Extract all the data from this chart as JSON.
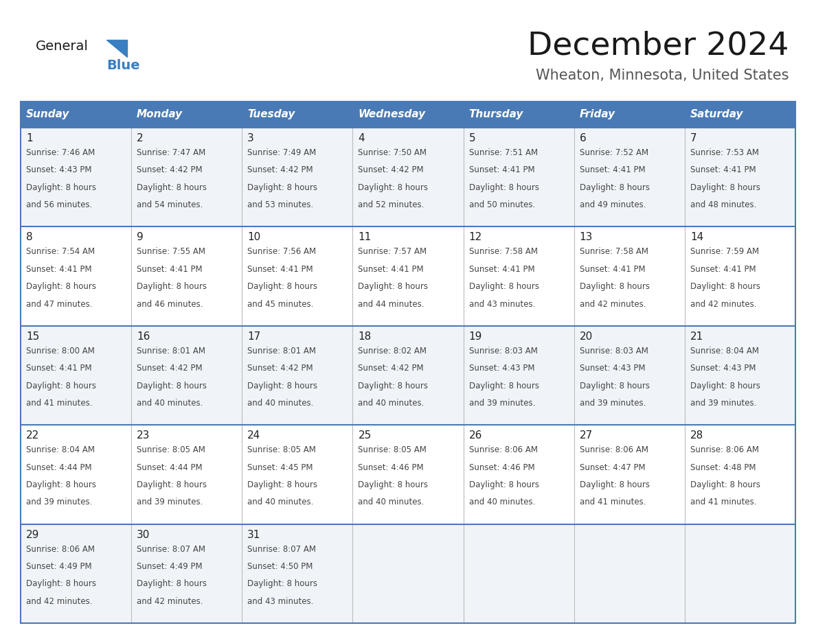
{
  "title": "December 2024",
  "subtitle": "Wheaton, Minnesota, United States",
  "days_of_week": [
    "Sunday",
    "Monday",
    "Tuesday",
    "Wednesday",
    "Thursday",
    "Friday",
    "Saturday"
  ],
  "header_bg": "#4a7ab5",
  "header_text": "#ffffff",
  "row_bg_odd": "#f0f4f8",
  "row_bg_even": "#ffffff",
  "border_color": "#4a7ab5",
  "day_number_color": "#222222",
  "cell_text_color": "#444444",
  "logo_general_color": "#1a1a1a",
  "logo_blue_color": "#3a7fc1",
  "title_color": "#1a1a1a",
  "subtitle_color": "#555555",
  "weeks": [
    {
      "days": [
        {
          "date": 1,
          "sunrise": "7:46 AM",
          "sunset": "4:43 PM",
          "daylight": "8 hours and 56 minutes."
        },
        {
          "date": 2,
          "sunrise": "7:47 AM",
          "sunset": "4:42 PM",
          "daylight": "8 hours and 54 minutes."
        },
        {
          "date": 3,
          "sunrise": "7:49 AM",
          "sunset": "4:42 PM",
          "daylight": "8 hours and 53 minutes."
        },
        {
          "date": 4,
          "sunrise": "7:50 AM",
          "sunset": "4:42 PM",
          "daylight": "8 hours and 52 minutes."
        },
        {
          "date": 5,
          "sunrise": "7:51 AM",
          "sunset": "4:41 PM",
          "daylight": "8 hours and 50 minutes."
        },
        {
          "date": 6,
          "sunrise": "7:52 AM",
          "sunset": "4:41 PM",
          "daylight": "8 hours and 49 minutes."
        },
        {
          "date": 7,
          "sunrise": "7:53 AM",
          "sunset": "4:41 PM",
          "daylight": "8 hours and 48 minutes."
        }
      ]
    },
    {
      "days": [
        {
          "date": 8,
          "sunrise": "7:54 AM",
          "sunset": "4:41 PM",
          "daylight": "8 hours and 47 minutes."
        },
        {
          "date": 9,
          "sunrise": "7:55 AM",
          "sunset": "4:41 PM",
          "daylight": "8 hours and 46 minutes."
        },
        {
          "date": 10,
          "sunrise": "7:56 AM",
          "sunset": "4:41 PM",
          "daylight": "8 hours and 45 minutes."
        },
        {
          "date": 11,
          "sunrise": "7:57 AM",
          "sunset": "4:41 PM",
          "daylight": "8 hours and 44 minutes."
        },
        {
          "date": 12,
          "sunrise": "7:58 AM",
          "sunset": "4:41 PM",
          "daylight": "8 hours and 43 minutes."
        },
        {
          "date": 13,
          "sunrise": "7:58 AM",
          "sunset": "4:41 PM",
          "daylight": "8 hours and 42 minutes."
        },
        {
          "date": 14,
          "sunrise": "7:59 AM",
          "sunset": "4:41 PM",
          "daylight": "8 hours and 42 minutes."
        }
      ]
    },
    {
      "days": [
        {
          "date": 15,
          "sunrise": "8:00 AM",
          "sunset": "4:41 PM",
          "daylight": "8 hours and 41 minutes."
        },
        {
          "date": 16,
          "sunrise": "8:01 AM",
          "sunset": "4:42 PM",
          "daylight": "8 hours and 40 minutes."
        },
        {
          "date": 17,
          "sunrise": "8:01 AM",
          "sunset": "4:42 PM",
          "daylight": "8 hours and 40 minutes."
        },
        {
          "date": 18,
          "sunrise": "8:02 AM",
          "sunset": "4:42 PM",
          "daylight": "8 hours and 40 minutes."
        },
        {
          "date": 19,
          "sunrise": "8:03 AM",
          "sunset": "4:43 PM",
          "daylight": "8 hours and 39 minutes."
        },
        {
          "date": 20,
          "sunrise": "8:03 AM",
          "sunset": "4:43 PM",
          "daylight": "8 hours and 39 minutes."
        },
        {
          "date": 21,
          "sunrise": "8:04 AM",
          "sunset": "4:43 PM",
          "daylight": "8 hours and 39 minutes."
        }
      ]
    },
    {
      "days": [
        {
          "date": 22,
          "sunrise": "8:04 AM",
          "sunset": "4:44 PM",
          "daylight": "8 hours and 39 minutes."
        },
        {
          "date": 23,
          "sunrise": "8:05 AM",
          "sunset": "4:44 PM",
          "daylight": "8 hours and 39 minutes."
        },
        {
          "date": 24,
          "sunrise": "8:05 AM",
          "sunset": "4:45 PM",
          "daylight": "8 hours and 40 minutes."
        },
        {
          "date": 25,
          "sunrise": "8:05 AM",
          "sunset": "4:46 PM",
          "daylight": "8 hours and 40 minutes."
        },
        {
          "date": 26,
          "sunrise": "8:06 AM",
          "sunset": "4:46 PM",
          "daylight": "8 hours and 40 minutes."
        },
        {
          "date": 27,
          "sunrise": "8:06 AM",
          "sunset": "4:47 PM",
          "daylight": "8 hours and 41 minutes."
        },
        {
          "date": 28,
          "sunrise": "8:06 AM",
          "sunset": "4:48 PM",
          "daylight": "8 hours and 41 minutes."
        }
      ]
    },
    {
      "days": [
        {
          "date": 29,
          "sunrise": "8:06 AM",
          "sunset": "4:49 PM",
          "daylight": "8 hours and 42 minutes."
        },
        {
          "date": 30,
          "sunrise": "8:07 AM",
          "sunset": "4:49 PM",
          "daylight": "8 hours and 42 minutes."
        },
        {
          "date": 31,
          "sunrise": "8:07 AM",
          "sunset": "4:50 PM",
          "daylight": "8 hours and 43 minutes."
        },
        null,
        null,
        null,
        null
      ]
    }
  ]
}
